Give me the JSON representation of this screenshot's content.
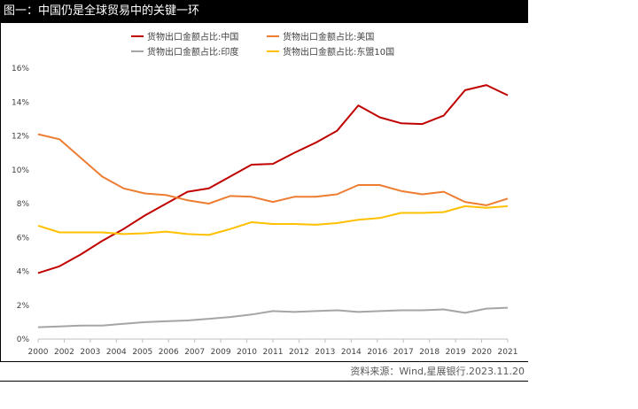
{
  "header": {
    "title": "图一：中国仍是全球贸易中的关键一环"
  },
  "footer": {
    "source": "资料来源：Wind,星展银行.2023.11.20"
  },
  "colors": {
    "china": "#c00000",
    "us": "#ed7d31",
    "india": "#a5a5a5",
    "asean": "#ffc000"
  },
  "chart_data": {
    "type": "line",
    "title": "",
    "xlabel": "",
    "ylabel": "",
    "ylim": [
      0,
      16
    ],
    "y_ticks": [
      "0%",
      "2%",
      "4%",
      "6%",
      "8%",
      "10%",
      "12%",
      "14%",
      "16%"
    ],
    "x": [
      "2000",
      "2001",
      "2002",
      "2003",
      "2004",
      "2005",
      "2006",
      "2007",
      "2008",
      "2009",
      "2010",
      "2011",
      "2012",
      "2013",
      "2014",
      "2015",
      "2016",
      "2017",
      "2018",
      "2019",
      "2020",
      "2021",
      "2022"
    ],
    "x_tick_labels": [
      "2000",
      "2002",
      "2003",
      "2004",
      "2005",
      "2006",
      "2007",
      "2009",
      "2010",
      "2011",
      "2012",
      "2013",
      "2014",
      "2016",
      "2017",
      "2018",
      "2019",
      "2020",
      "2021"
    ],
    "legend_position": "top",
    "grid": false,
    "series": [
      {
        "name": "货物出口金额占比:中国",
        "color_key": "china",
        "values": [
          3.9,
          4.3,
          5.0,
          5.8,
          6.5,
          7.3,
          8.0,
          8.7,
          8.9,
          9.6,
          10.3,
          10.35,
          11.0,
          11.6,
          12.3,
          13.8,
          13.1,
          12.75,
          12.7,
          13.2,
          14.7,
          15.0,
          14.4
        ]
      },
      {
        "name": "货物出口金额占比:美国",
        "color_key": "us",
        "values": [
          12.1,
          11.8,
          10.7,
          9.6,
          8.9,
          8.6,
          8.5,
          8.2,
          8.0,
          8.45,
          8.4,
          8.1,
          8.4,
          8.4,
          8.55,
          9.1,
          9.1,
          8.75,
          8.55,
          8.7,
          8.1,
          7.9,
          8.3
        ]
      },
      {
        "name": "货物出口金额占比:印度",
        "color_key": "india",
        "values": [
          0.7,
          0.75,
          0.8,
          0.8,
          0.9,
          1.0,
          1.05,
          1.1,
          1.2,
          1.3,
          1.45,
          1.65,
          1.6,
          1.65,
          1.7,
          1.6,
          1.65,
          1.7,
          1.7,
          1.75,
          1.55,
          1.8,
          1.85
        ]
      },
      {
        "name": "货物出口金额占比:东盟10国",
        "color_key": "asean",
        "values": [
          6.7,
          6.3,
          6.3,
          6.3,
          6.2,
          6.25,
          6.35,
          6.2,
          6.15,
          6.5,
          6.9,
          6.8,
          6.8,
          6.75,
          6.85,
          7.05,
          7.15,
          7.45,
          7.45,
          7.5,
          7.85,
          7.75,
          7.85
        ]
      }
    ]
  }
}
